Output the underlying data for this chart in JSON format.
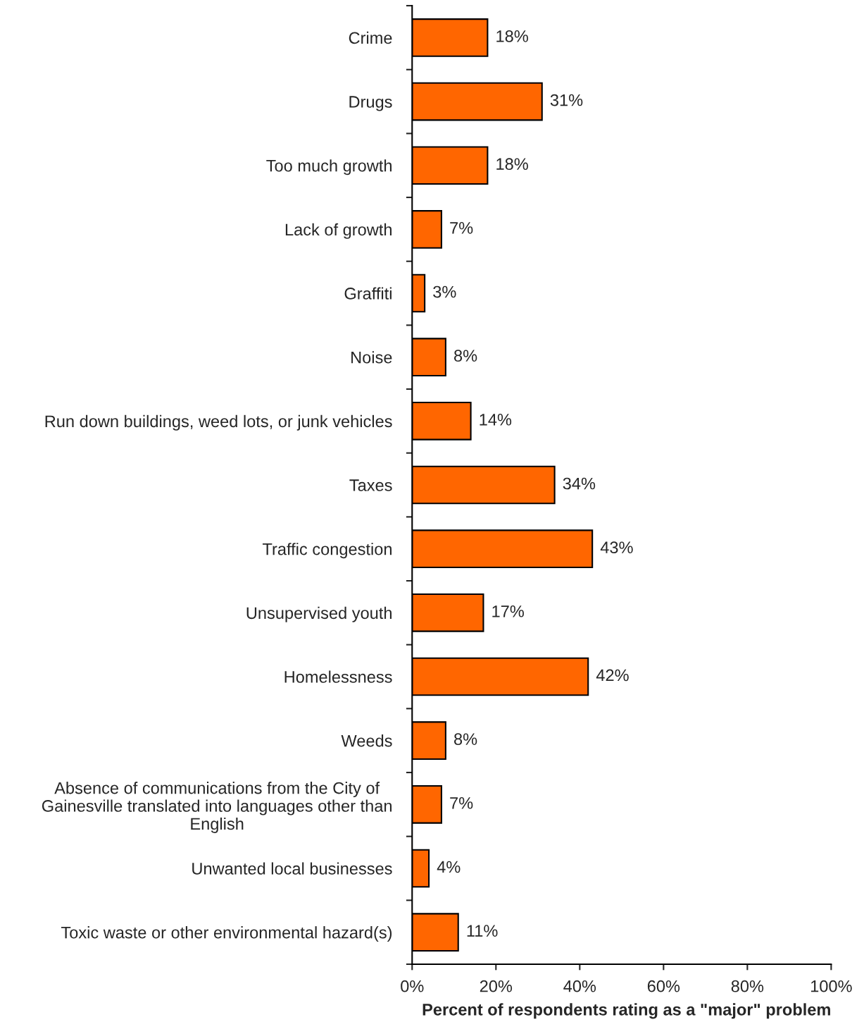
{
  "chart_data": {
    "type": "bar",
    "orientation": "horizontal",
    "xlabel": "Percent of respondents rating as a \"major\" problem",
    "categories": [
      "Crime",
      "Drugs",
      "Too much growth",
      "Lack of growth",
      "Graffiti",
      "Noise",
      "Run down buildings, weed lots, or junk vehicles",
      "Taxes",
      "Traffic congestion",
      "Unsupervised youth",
      "Homelessness",
      "Weeds",
      "Absence of communications from the City of\nGainesville translated into languages other than\nEnglish",
      "Unwanted local businesses",
      "Toxic waste or other environmental hazard(s)"
    ],
    "values": [
      18,
      31,
      18,
      7,
      3,
      8,
      14,
      34,
      43,
      17,
      42,
      8,
      7,
      4,
      11
    ],
    "value_labels": [
      "18%",
      "31%",
      "18%",
      "7%",
      "3%",
      "8%",
      "14%",
      "34%",
      "43%",
      "17%",
      "42%",
      "8%",
      "7%",
      "4%",
      "11%"
    ],
    "color": "#ff6600",
    "xlim": [
      0,
      100
    ],
    "xticks": [
      {
        "value": 0,
        "label": "0%"
      },
      {
        "value": 20,
        "label": "20%"
      },
      {
        "value": 40,
        "label": "40%"
      },
      {
        "value": 60,
        "label": "60%"
      },
      {
        "value": 80,
        "label": "80%"
      },
      {
        "value": 100,
        "label": "100%"
      }
    ],
    "grid": false,
    "legend": false
  }
}
